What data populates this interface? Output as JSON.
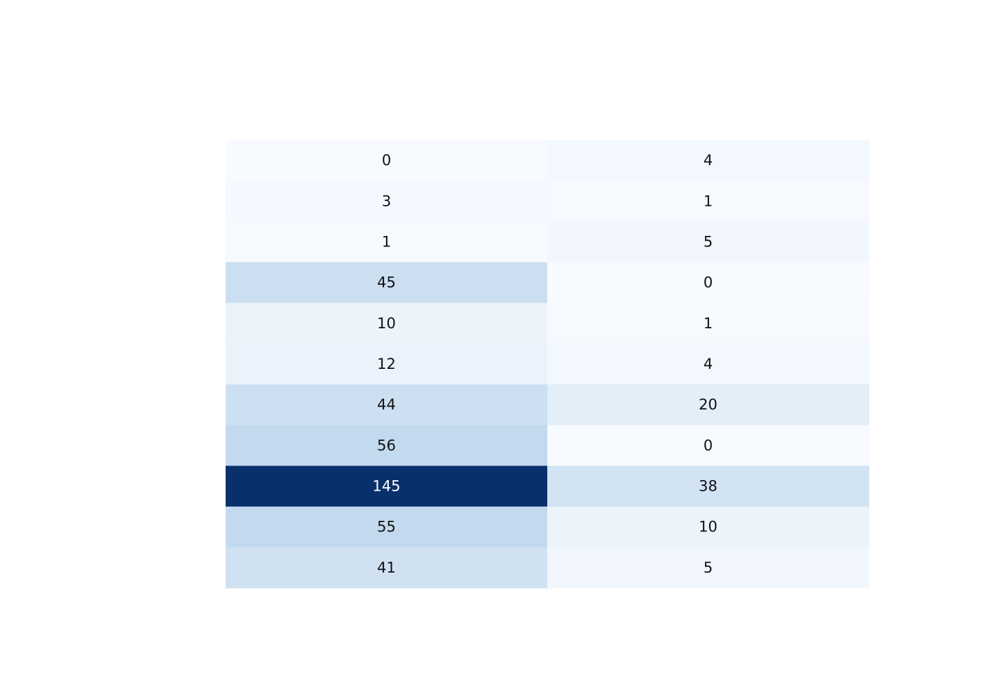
{
  "chart_data": {
    "type": "heatmap",
    "title": "",
    "xlabel": "",
    "ylabel": "",
    "colorscale": "Blues",
    "zmin": 0,
    "zmax": 145,
    "columns": 2,
    "rows": 11,
    "values": [
      [
        0,
        4
      ],
      [
        3,
        1
      ],
      [
        1,
        5
      ],
      [
        45,
        0
      ],
      [
        10,
        1
      ],
      [
        12,
        4
      ],
      [
        44,
        20
      ],
      [
        56,
        0
      ],
      [
        145,
        38
      ],
      [
        55,
        10
      ],
      [
        41,
        5
      ]
    ],
    "text_labels": [
      [
        "0",
        "4"
      ],
      [
        "3",
        "1"
      ],
      [
        "1",
        "5"
      ],
      [
        "45",
        "0"
      ],
      [
        "10",
        "1"
      ],
      [
        "12",
        "4"
      ],
      [
        "44",
        "20"
      ],
      [
        "56",
        "0"
      ],
      [
        "145",
        "38"
      ],
      [
        "55",
        "10"
      ],
      [
        "41",
        "5"
      ]
    ],
    "grid": false,
    "legend": "none"
  }
}
